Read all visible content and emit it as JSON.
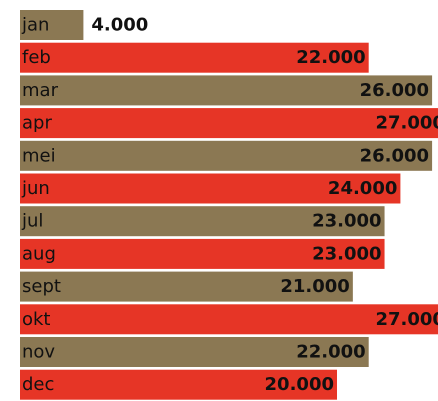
{
  "chart_data": {
    "type": "bar",
    "orientation": "horizontal",
    "categories": [
      "jan",
      "feb",
      "mar",
      "apr",
      "mei",
      "jun",
      "jul",
      "aug",
      "sept",
      "okt",
      "nov",
      "dec"
    ],
    "values": [
      4000,
      22000,
      26000,
      27000,
      26000,
      24000,
      23000,
      23000,
      21000,
      27000,
      22000,
      20000
    ],
    "value_labels": [
      "4.000",
      "22.000",
      "26.000",
      "27.000",
      "26.000",
      "24.000",
      "23.000",
      "23.000",
      "21.000",
      "27.000",
      "22.000",
      "20.000"
    ],
    "colors": [
      "#8b7853",
      "#e63526",
      "#8b7853",
      "#e63526",
      "#8b7853",
      "#e63526",
      "#8b7853",
      "#e63526",
      "#8b7853",
      "#e63526",
      "#8b7853",
      "#e63526"
    ]
  }
}
